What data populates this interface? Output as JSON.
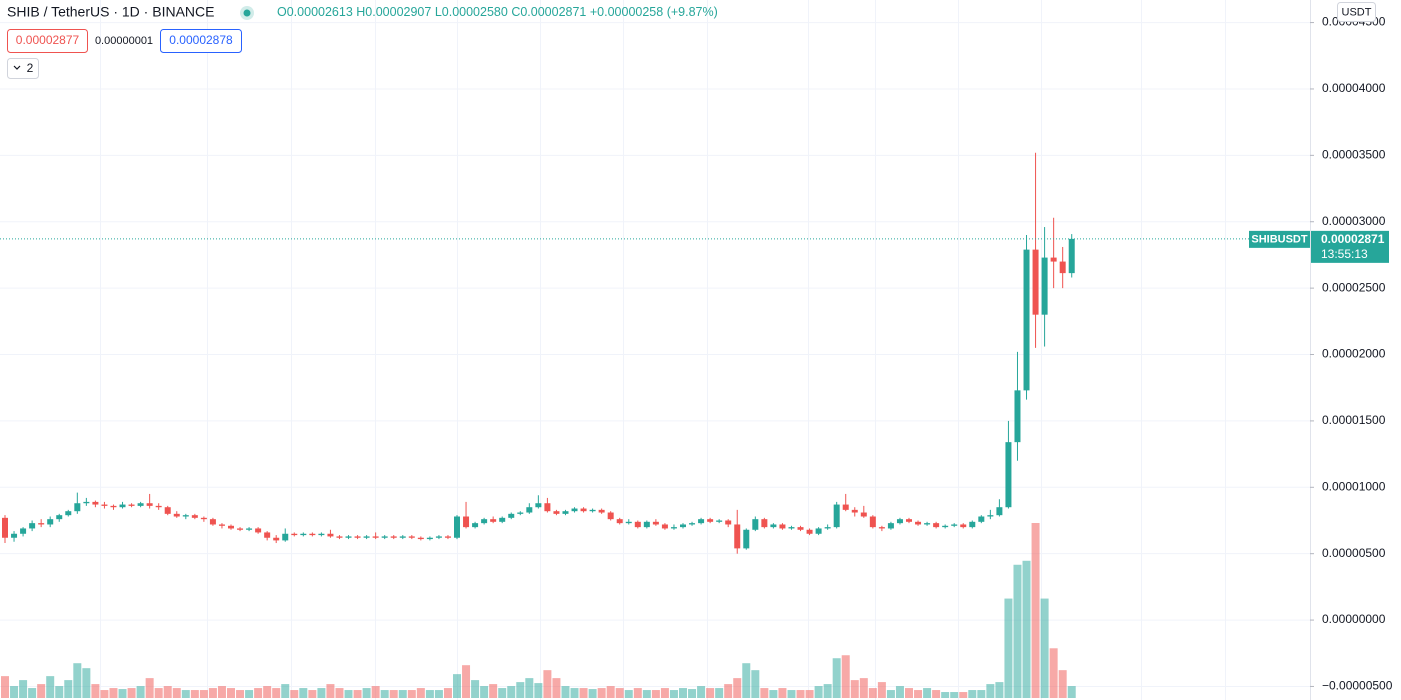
{
  "chart_data": {
    "type": "candlestick",
    "title": "SHIB / TetherUS · 1D · BINANCE",
    "header": {
      "open_label": "O",
      "open": "0.00002613",
      "high_label": "H",
      "high": "0.00002907",
      "low_label": "L",
      "low": "0.00002580",
      "close_label": "C",
      "close": "0.00002871",
      "change": "+0.00000258 (+9.87%)"
    },
    "sell_price": "0.00002877",
    "spread": "0.00000001",
    "buy_price": "0.00002878",
    "indicators_count": "2",
    "currency": "USDT",
    "symbol": "SHIBUSDT",
    "countdown": "13:55:13",
    "up_color": "#26a69a",
    "down_color": "#ef5350",
    "grid": true,
    "ylim": [
      -6.02e-06,
      4.67e-05
    ],
    "yticks": [
      {
        "value": 4.5e-05,
        "label": "0.00004500"
      },
      {
        "value": 4e-05,
        "label": "0.00004000"
      },
      {
        "value": 3.5e-05,
        "label": "0.00003500"
      },
      {
        "value": 3e-05,
        "label": "0.00003000"
      },
      {
        "value": 2.5e-05,
        "label": "0.00002500"
      },
      {
        "value": 2e-05,
        "label": "0.00002000"
      },
      {
        "value": 1.5e-05,
        "label": "0.00001500"
      },
      {
        "value": 1e-05,
        "label": "0.00001000"
      },
      {
        "value": 5e-06,
        "label": "0.00000500"
      },
      {
        "value": 0,
        "label": "0.00000000"
      },
      {
        "value": -5e-06,
        "label": "−0.00000500"
      }
    ],
    "open": [
      7.7e-06,
      6.2e-06,
      6.5e-06,
      6.9e-06,
      7.3e-06,
      7.2e-06,
      7.6e-06,
      7.9e-06,
      8.2e-06,
      8.8e-06,
      8.9e-06,
      8.7e-06,
      8.6e-06,
      8.5e-06,
      8.7e-06,
      8.6e-06,
      8.8e-06,
      8.6e-06,
      8.5e-06,
      8e-06,
      7.8e-06,
      7.9e-06,
      7.7e-06,
      7.6e-06,
      7.2e-06,
      7.1e-06,
      6.9e-06,
      6.8e-06,
      6.9e-06,
      6.6e-06,
      6.2e-06,
      6e-06,
      6.5e-06,
      6.4e-06,
      6.5e-06,
      6.4e-06,
      6.5e-06,
      6.3e-06,
      6.2e-06,
      6.3e-06,
      6.2e-06,
      6.3e-06,
      6.2e-06,
      6.3e-06,
      6.2e-06,
      6.3e-06,
      6.2e-06,
      6.1e-06,
      6.2e-06,
      6.3e-06,
      6.2e-06,
      7.8e-06,
      7e-06,
      7.3e-06,
      7.6e-06,
      7.4e-06,
      7.7e-06,
      8e-06,
      8.1e-06,
      8.5e-06,
      8.8e-06,
      8.2e-06,
      8e-06,
      8.2e-06,
      8.4e-06,
      8.2e-06,
      8.3e-06,
      8.1e-06,
      7.6e-06,
      7.3e-06,
      7.4e-06,
      7e-06,
      7.4e-06,
      7.2e-06,
      6.9e-06,
      7e-06,
      7.2e-06,
      7.3e-06,
      7.6e-06,
      7.4e-06,
      7.5e-06,
      7.2e-06,
      5.4e-06,
      6.8e-06,
      7.6e-06,
      7e-06,
      7.2e-06,
      6.9e-06,
      7e-06,
      6.8e-06,
      6.5e-06,
      6.9e-06,
      7e-06,
      8.7e-06,
      8.3e-06,
      8.1e-06,
      7.8e-06,
      7e-06,
      6.9e-06,
      7.3e-06,
      7.6e-06,
      7.4e-06,
      7.2e-06,
      7.3e-06,
      7e-06,
      7.1e-06,
      7.2e-06,
      7e-06,
      7.4e-06,
      7.8e-06,
      7.9e-06,
      8.5e-06,
      1.34e-05,
      1.73e-05,
      2.79e-05,
      2.3e-05,
      2.73e-05,
      2.7e-05,
      2.613e-05
    ],
    "high": [
      7.9e-06,
      6.7e-06,
      7e-06,
      7.5e-06,
      7.6e-06,
      7.8e-06,
      8e-06,
      8.3e-06,
      9.6e-06,
      9.2e-06,
      9e-06,
      8.9e-06,
      8.7e-06,
      8.9e-06,
      8.8e-06,
      8.9e-06,
      9.5e-06,
      8.8e-06,
      8.6e-06,
      8.2e-06,
      8e-06,
      8e-06,
      7.8e-06,
      7.7e-06,
      7.3e-06,
      7.2e-06,
      7e-06,
      7e-06,
      7e-06,
      6.7e-06,
      6.4e-06,
      6.9e-06,
      6.6e-06,
      6.6e-06,
      6.6e-06,
      6.6e-06,
      6.8e-06,
      6.4e-06,
      6.4e-06,
      6.4e-06,
      6.4e-06,
      6.6e-06,
      6.4e-06,
      6.4e-06,
      6.4e-06,
      6.4e-06,
      6.3e-06,
      6.3e-06,
      6.4e-06,
      6.4e-06,
      7.9e-06,
      8.9e-06,
      7.4e-06,
      7.7e-06,
      7.8e-06,
      7.8e-06,
      8.1e-06,
      8.2e-06,
      8.8e-06,
      9.4e-06,
      9.2e-06,
      8.3e-06,
      8.3e-06,
      8.5e-06,
      8.5e-06,
      8.4e-06,
      8.4e-06,
      8.2e-06,
      7.7e-06,
      7.6e-06,
      7.5e-06,
      7.5e-06,
      7.6e-06,
      7.3e-06,
      7.2e-06,
      7.3e-06,
      7.4e-06,
      7.7e-06,
      7.7e-06,
      7.6e-06,
      7.6e-06,
      8.3e-06,
      6.9e-06,
      7.8e-06,
      7.7e-06,
      7.3e-06,
      7.3e-06,
      7.1e-06,
      7.1e-06,
      6.9e-06,
      7e-06,
      7.2e-06,
      8.9e-06,
      9.5e-06,
      8.5e-06,
      8.6e-06,
      7.9e-06,
      7.1e-06,
      7.4e-06,
      7.7e-06,
      7.7e-06,
      7.5e-06,
      7.4e-06,
      7.4e-06,
      7.2e-06,
      7.3e-06,
      7.3e-06,
      7.5e-06,
      7.9e-06,
      8.3e-06,
      9.1e-06,
      1.5e-05,
      2.02e-05,
      2.9e-05,
      3.52e-05,
      2.96e-05,
      3.03e-05,
      2.81e-05,
      2.907e-05
    ],
    "low": [
      5.8e-06,
      5.9e-06,
      6.3e-06,
      6.7e-06,
      7e-06,
      7e-06,
      7.4e-06,
      7.8e-06,
      8e-06,
      8.6e-06,
      8.5e-06,
      8.4e-06,
      8.3e-06,
      8.4e-06,
      8.5e-06,
      8.5e-06,
      8.4e-06,
      8.3e-06,
      7.9e-06,
      7.7e-06,
      7.6e-06,
      7.6e-06,
      7.4e-06,
      7.1e-06,
      6.9e-06,
      6.8e-06,
      6.7e-06,
      6.7e-06,
      6.5e-06,
      6e-06,
      5.8e-06,
      5.9e-06,
      6.3e-06,
      6.3e-06,
      6.3e-06,
      6.3e-06,
      6.2e-06,
      6.1e-06,
      6.1e-06,
      6.1e-06,
      6.1e-06,
      6.1e-06,
      6.1e-06,
      6.1e-06,
      6.1e-06,
      6.1e-06,
      6e-06,
      6e-06,
      6.1e-06,
      6.1e-06,
      6.1e-06,
      6.9e-06,
      6.9e-06,
      7.2e-06,
      7.3e-06,
      7.3e-06,
      7.6e-06,
      7.9e-06,
      8e-06,
      8.4e-06,
      8.1e-06,
      7.9e-06,
      7.9e-06,
      8.1e-06,
      8.1e-06,
      8.1e-06,
      8e-06,
      7.5e-06,
      7.2e-06,
      7.2e-06,
      6.9e-06,
      6.9e-06,
      7.1e-06,
      6.8e-06,
      6.8e-06,
      6.9e-06,
      7.1e-06,
      7.2e-06,
      7.3e-06,
      7.3e-06,
      7e-06,
      5e-06,
      5.3e-06,
      6.7e-06,
      6.9e-06,
      6.9e-06,
      6.8e-06,
      6.8e-06,
      6.7e-06,
      6.4e-06,
      6.4e-06,
      6.8e-06,
      6.9e-06,
      8.2e-06,
      7.8e-06,
      7.7e-06,
      6.9e-06,
      6.7e-06,
      6.8e-06,
      7.2e-06,
      7.3e-06,
      7.1e-06,
      7.1e-06,
      6.9e-06,
      6.9e-06,
      7e-06,
      6.9e-06,
      6.9e-06,
      7.3e-06,
      7.6e-06,
      7.8e-06,
      8.4e-06,
      1.2e-05,
      1.66e-05,
      2.05e-05,
      2.06e-05,
      2.5e-05,
      2.5e-05,
      2.58e-05
    ],
    "close": [
      6.2e-06,
      6.5e-06,
      6.9e-06,
      7.3e-06,
      7.2e-06,
      7.6e-06,
      7.9e-06,
      8.2e-06,
      8.8e-06,
      8.9e-06,
      8.7e-06,
      8.6e-06,
      8.5e-06,
      8.7e-06,
      8.6e-06,
      8.8e-06,
      8.6e-06,
      8.5e-06,
      8e-06,
      7.8e-06,
      7.9e-06,
      7.7e-06,
      7.6e-06,
      7.2e-06,
      7.1e-06,
      6.9e-06,
      6.8e-06,
      6.9e-06,
      6.6e-06,
      6.2e-06,
      6e-06,
      6.5e-06,
      6.4e-06,
      6.5e-06,
      6.4e-06,
      6.5e-06,
      6.3e-06,
      6.2e-06,
      6.3e-06,
      6.2e-06,
      6.3e-06,
      6.2e-06,
      6.3e-06,
      6.2e-06,
      6.3e-06,
      6.2e-06,
      6.1e-06,
      6.2e-06,
      6.3e-06,
      6.2e-06,
      7.8e-06,
      7e-06,
      7.3e-06,
      7.6e-06,
      7.4e-06,
      7.7e-06,
      8e-06,
      8.1e-06,
      8.5e-06,
      8.8e-06,
      8.2e-06,
      8e-06,
      8.2e-06,
      8.4e-06,
      8.2e-06,
      8.3e-06,
      8.1e-06,
      7.6e-06,
      7.3e-06,
      7.4e-06,
      7e-06,
      7.4e-06,
      7.2e-06,
      6.9e-06,
      7e-06,
      7.2e-06,
      7.3e-06,
      7.6e-06,
      7.4e-06,
      7.5e-06,
      7.2e-06,
      5.4e-06,
      6.8e-06,
      7.6e-06,
      7e-06,
      7.2e-06,
      6.9e-06,
      7e-06,
      6.8e-06,
      6.5e-06,
      6.9e-06,
      7e-06,
      8.7e-06,
      8.3e-06,
      8.1e-06,
      7.8e-06,
      7e-06,
      6.9e-06,
      7.3e-06,
      7.6e-06,
      7.4e-06,
      7.2e-06,
      7.3e-06,
      7e-06,
      7.1e-06,
      7.2e-06,
      7e-06,
      7.4e-06,
      7.8e-06,
      7.9e-06,
      8.5e-06,
      1.34e-05,
      1.73e-05,
      2.79e-05,
      2.3e-05,
      2.73e-05,
      2.7e-05,
      2.613e-05,
      2.871e-05
    ],
    "volume": [
      22,
      12,
      18,
      10,
      14,
      22,
      12,
      18,
      35,
      30,
      14,
      8,
      10,
      9,
      10,
      12,
      20,
      10,
      12,
      10,
      8,
      8,
      8,
      10,
      12,
      10,
      8,
      8,
      10,
      12,
      10,
      14,
      8,
      10,
      8,
      10,
      14,
      10,
      8,
      8,
      10,
      12,
      8,
      8,
      8,
      8,
      10,
      8,
      8,
      10,
      24,
      33,
      18,
      12,
      14,
      10,
      12,
      16,
      20,
      15,
      28,
      20,
      12,
      10,
      10,
      9,
      10,
      12,
      10,
      8,
      10,
      8,
      8,
      10,
      8,
      10,
      9,
      12,
      10,
      10,
      14,
      20,
      35,
      28,
      10,
      8,
      10,
      8,
      8,
      8,
      12,
      14,
      40,
      43,
      18,
      20,
      10,
      16,
      8,
      12,
      10,
      8,
      10,
      8,
      6,
      6,
      6,
      8,
      8,
      14,
      16,
      100,
      134,
      138,
      176,
      100,
      50,
      28,
      12
    ]
  }
}
